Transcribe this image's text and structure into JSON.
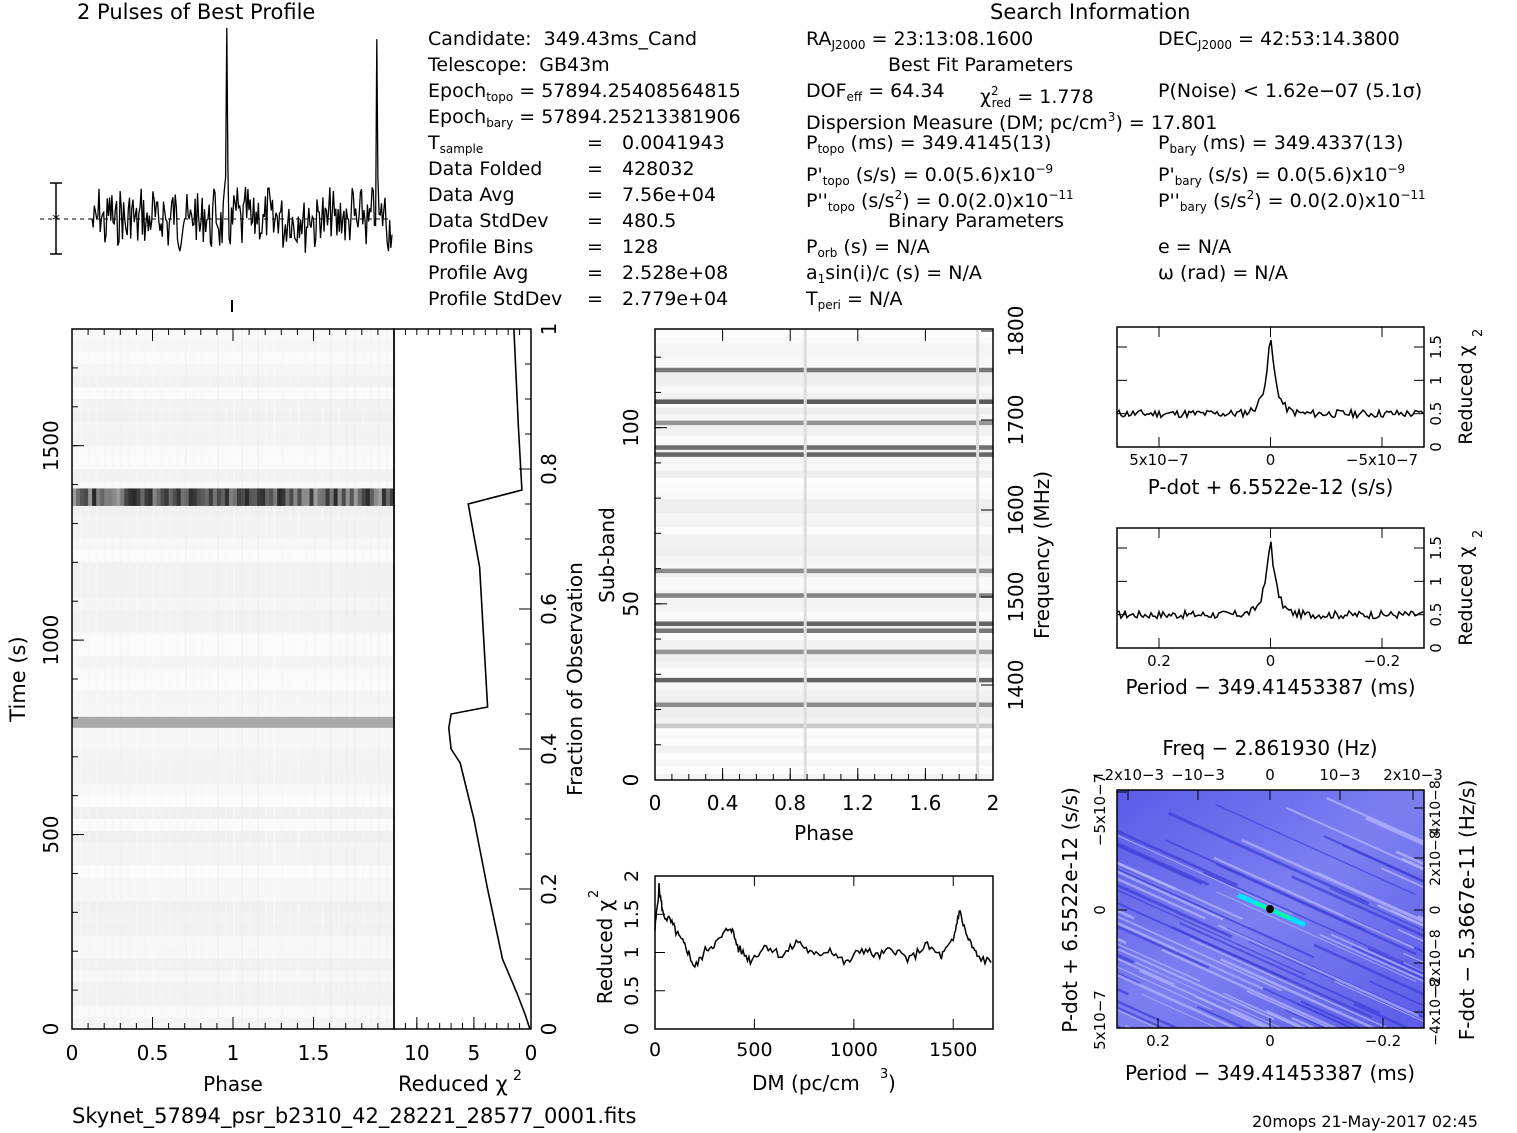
{
  "headers": {
    "profile_title": "2 Pulses of Best Profile",
    "search_info": "Search Information"
  },
  "candidate_info": [
    {
      "label": "Candidate:",
      "value": "349.43ms_Cand"
    },
    {
      "label": "Telescope:",
      "value": "GB43m"
    },
    {
      "label": "Epoch",
      "sub": "topo",
      "value": "= 57894.25408564815"
    },
    {
      "label": "Epoch",
      "sub": "bary",
      "value": "= 57894.25213381906"
    },
    {
      "label": "T",
      "sub": "sample",
      "value": "0.0041943"
    },
    {
      "label": "Data Folded",
      "value": "428032"
    },
    {
      "label": "Data Avg",
      "value": "7.56e+04"
    },
    {
      "label": "Data StdDev",
      "value": "480.5"
    },
    {
      "label": "Profile Bins",
      "value": "128"
    },
    {
      "label": "Profile Avg",
      "value": "2.528e+08"
    },
    {
      "label": "Profile StdDev",
      "value": "2.779e+04"
    }
  ],
  "search": {
    "ra": "RA",
    "ra_sub": "J2000",
    "ra_value": "= 23:13:08.1600",
    "dec": "DEC",
    "dec_sub": "J2000",
    "dec_value": "= 42:53:14.3800",
    "best_fit_title": "Best Fit Parameters",
    "dof": "DOF",
    "dof_sub": "eff",
    "dof_value": "= 64.34",
    "chi": "χ",
    "chi_sup": "2",
    "chi_sub": "red",
    "chi_value": "= 1.778",
    "pnoise": "P(Noise) < 1.62e−07   (5.1σ)",
    "dm_line": "Dispersion Measure (DM; pc/cm",
    "dm_sup": "3",
    "dm_value": ") = 17.801",
    "ptopo": "P",
    "ptopo_sub": "topo",
    "ptopo_value": "(ms) =  349.4145(13)",
    "pbary": "P",
    "pbary_sub": "bary",
    "pbary_value": "(ms) =  349.4337(13)",
    "pdtopo": "P'",
    "pdtopo_sub": "topo",
    "pdtopo_value": "(s/s) = 0.0(5.6)x10",
    "pdtopo_exp": "−9",
    "pdbary": "P'",
    "pdbary_sub": "bary",
    "pdbary_value": "(s/s) = 0.0(5.6)x10",
    "pdbary_exp": "−9",
    "pddtopo": "P''",
    "pddtopo_sub": "topo",
    "pddtopo_value": "(s/s",
    "pddtopo_value2": ") = 0.0(2.0)x10",
    "pddtopo_exp": "−11",
    "pddbary": "P''",
    "pddbary_sub": "bary",
    "pddbary_value": "(s/s",
    "pddbary_value2": ") = 0.0(2.0)x10",
    "pddbary_exp": "−11",
    "sq": "2",
    "binary_title": "Binary Parameters",
    "porb": "P",
    "porb_sub": "orb",
    "porb_value": "(s) = N/A",
    "e_value": "e = N/A",
    "asini": "a",
    "asini_sub": "1",
    "asini_value": "sin(i)/c (s) = N/A",
    "omega_value": "ω (rad) = N/A",
    "tperi": "T",
    "tperi_sub": "peri",
    "tperi_value": "= N/A"
  },
  "footer": {
    "filename": "Skynet_57894_psr_b2310_42_28221_28577_0001.fits",
    "stamp": "20mops 21-May-2017 02:45"
  },
  "chart_data": [
    {
      "type": "line",
      "title": "2 Pulses of Best Profile",
      "xlabel": "",
      "ylabel": "",
      "xlim": [
        0,
        2
      ],
      "peaks_at_phase": [
        0.9,
        1.9
      ]
    },
    {
      "type": "heatmap",
      "xlabel": "Phase",
      "ylabel": "Time (s)",
      "xlim": [
        0,
        2
      ],
      "ylim": [
        0,
        1800
      ],
      "x_ticks": [
        "0",
        "0.5",
        "1",
        "1.5"
      ],
      "y_ticks": [
        "0",
        "500",
        "1000",
        "1500"
      ],
      "dark_rows_time": [
        790,
        1360,
        1375
      ]
    },
    {
      "type": "line",
      "xlabel": "Reduced χ2",
      "ylabel": "Fraction of Observation",
      "xlim": [
        12,
        0
      ],
      "ylim": [
        0,
        1
      ],
      "x_ticks": [
        "10",
        "5",
        "0"
      ],
      "y_ticks": [
        "0",
        "0.2",
        "0.4",
        "0.6",
        "0.8",
        "1"
      ],
      "points": [
        [
          0.1,
          0.0
        ],
        [
          0.5,
          0.02
        ],
        [
          1.2,
          0.05
        ],
        [
          2.5,
          0.1
        ],
        [
          3.8,
          0.2
        ],
        [
          5.0,
          0.3
        ],
        [
          6.2,
          0.38
        ],
        [
          7.0,
          0.4
        ],
        [
          7.2,
          0.43
        ],
        [
          7.0,
          0.45
        ],
        [
          3.8,
          0.46
        ],
        [
          4.5,
          0.66
        ],
        [
          5.5,
          0.75
        ],
        [
          0.8,
          0.77
        ],
        [
          1.1,
          0.86
        ],
        [
          1.5,
          1.0
        ]
      ]
    },
    {
      "type": "heatmap",
      "xlabel": "Phase",
      "ylabel": "Sub-band",
      "ylabel_right": "Frequency (MHz)",
      "xlim": [
        0,
        2
      ],
      "ylim": [
        0,
        128
      ],
      "x_ticks": [
        "0",
        "0.4",
        "0.8",
        "1.2",
        "1.6",
        "2"
      ],
      "y_ticks": [
        "0",
        "50",
        "100"
      ],
      "y2_ticks": [
        "1400",
        "1500",
        "1600",
        "1700",
        "1800"
      ],
      "bands": [
        116,
        107,
        101,
        94,
        92,
        59,
        52,
        44,
        42,
        36,
        28,
        21,
        15
      ]
    },
    {
      "type": "line",
      "xlabel": "DM (pc/cm3)",
      "ylabel": "Reduced χ2",
      "xlim": [
        0,
        1700
      ],
      "ylim": [
        0,
        2
      ],
      "x_ticks": [
        "0",
        "500",
        "1000",
        "1500"
      ],
      "y_ticks": [
        "0",
        "0.5",
        "1",
        "1.5",
        "2"
      ],
      "points": [
        [
          0,
          1.3
        ],
        [
          20,
          1.85
        ],
        [
          40,
          1.5
        ],
        [
          80,
          1.4
        ],
        [
          120,
          1.2
        ],
        [
          160,
          1.05
        ],
        [
          200,
          0.8
        ],
        [
          260,
          1.05
        ],
        [
          320,
          1.15
        ],
        [
          380,
          1.35
        ],
        [
          420,
          1.05
        ],
        [
          480,
          0.9
        ],
        [
          560,
          1.1
        ],
        [
          640,
          0.95
        ],
        [
          720,
          1.15
        ],
        [
          800,
          0.95
        ],
        [
          880,
          1.05
        ],
        [
          960,
          0.85
        ],
        [
          1040,
          1.05
        ],
        [
          1120,
          0.95
        ],
        [
          1200,
          1.05
        ],
        [
          1280,
          0.9
        ],
        [
          1360,
          1.1
        ],
        [
          1440,
          0.95
        ],
        [
          1500,
          1.15
        ],
        [
          1530,
          1.55
        ],
        [
          1570,
          1.2
        ],
        [
          1620,
          0.95
        ],
        [
          1700,
          0.85
        ]
      ]
    },
    {
      "type": "line",
      "xlabel": "P-dot + 6.5522e-12 (s/s)",
      "ylabel": "Reduced χ2",
      "x_ticks": [
        "5x10−7",
        "0",
        "−5x10−7"
      ],
      "y_ticks": [
        "0",
        "0.5",
        "1",
        "1.5"
      ],
      "ylim": [
        0,
        1.8
      ],
      "peak": 1.7,
      "baseline": 0.5
    },
    {
      "type": "line",
      "xlabel": "Period − 349.41453387 (ms)",
      "ylabel": "Reduced χ2",
      "x_ticks": [
        "0.2",
        "0",
        "−0.2"
      ],
      "y_ticks": [
        "0",
        "0.5",
        "1",
        "1.5"
      ],
      "ylim": [
        0,
        1.8
      ],
      "peak": 1.7,
      "baseline": 0.5
    },
    {
      "type": "heatmap",
      "title": "Freq − 2.861930 (Hz)",
      "xlabel": "Period − 349.41453387 (ms)",
      "ylabel": "P-dot + 6.5522e-12 (s/s)",
      "ylabel_right": "F-dot − 5.3667e-11 (Hz/s)",
      "x_ticks": [
        "0.2",
        "0",
        "−0.2"
      ],
      "x2_ticks": [
        "−2x10−3",
        "−10−3",
        "0",
        "10−3",
        "2x10−3"
      ],
      "y_ticks": [
        "5x10−7",
        "0",
        "−5x10−7"
      ],
      "y2_ticks": [
        "−4x10−8",
        "−2x10−8",
        "0",
        "2x10−8",
        "4x10−8"
      ]
    }
  ]
}
